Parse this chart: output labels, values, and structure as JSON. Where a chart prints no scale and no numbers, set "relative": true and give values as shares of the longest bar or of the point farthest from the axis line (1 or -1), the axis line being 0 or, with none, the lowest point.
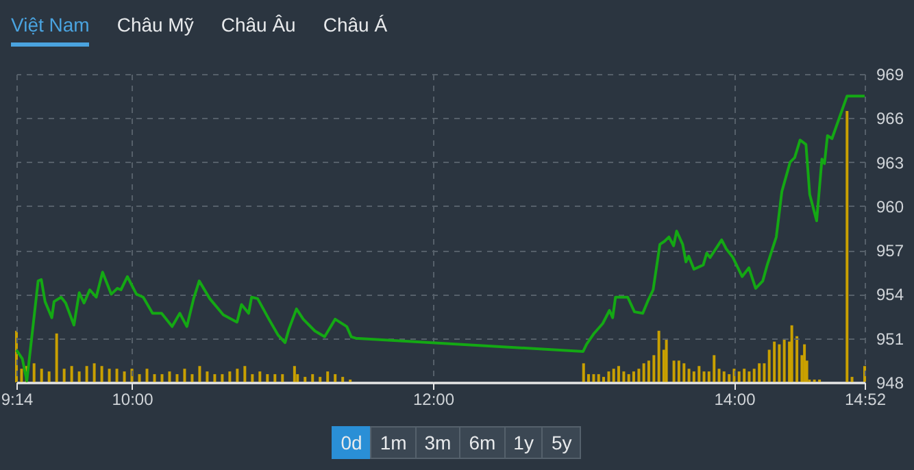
{
  "chart_data": [
    {
      "type": "line",
      "xlim": [
        9.233,
        14.867
      ],
      "ylim": [
        948,
        969
      ],
      "xticks": [
        {
          "value": 9.233,
          "label": "9:14"
        },
        {
          "value": 10,
          "label": "10:00"
        },
        {
          "value": 12,
          "label": "12:00"
        },
        {
          "value": 14,
          "label": "14:00"
        },
        {
          "value": 14.867,
          "label": "14:52"
        }
      ],
      "yticks": [
        948,
        951,
        954,
        957,
        960,
        963,
        966,
        969
      ],
      "grid": true,
      "annotations": [
        "Việt Nam",
        "Châu Mỹ",
        "Châu Âu",
        "Châu Á",
        "0d",
        "1m",
        "3m",
        "6m",
        "1y",
        "5y"
      ],
      "color": "#14a814",
      "x": [
        9.233,
        9.272,
        9.302,
        9.377,
        9.398,
        9.423,
        9.468,
        9.483,
        9.53,
        9.56,
        9.615,
        9.65,
        9.682,
        9.72,
        9.763,
        9.805,
        9.863,
        9.903,
        9.927,
        9.97,
        10.03,
        10.075,
        10.137,
        10.197,
        10.267,
        10.318,
        10.365,
        10.41,
        10.447,
        10.517,
        10.607,
        10.698,
        10.728,
        10.775,
        10.795,
        10.835,
        10.91,
        10.972,
        11.017,
        11.042,
        11.093,
        11.138,
        11.215,
        11.28,
        11.35,
        11.427,
        11.457,
        11.487,
        12.997,
        13.02,
        13.067,
        13.127,
        13.172,
        13.193,
        13.212,
        13.263,
        13.293,
        13.338,
        13.393,
        13.425,
        13.462,
        13.507,
        13.537,
        13.567,
        13.598,
        13.618,
        13.658,
        13.68,
        13.698,
        13.733,
        13.795,
        13.818,
        13.84,
        13.885,
        13.917,
        13.947,
        13.992,
        14.053,
        14.098,
        14.143,
        14.19,
        14.22,
        14.28,
        14.317,
        14.372,
        14.402,
        14.438,
        14.477,
        14.502,
        14.548,
        14.583,
        14.6,
        14.62,
        14.65,
        14.75,
        14.867
      ],
      "values": [
        950.2,
        949.6,
        948.1,
        954.9,
        955.0,
        953.5,
        952.4,
        953.5,
        953.8,
        953.4,
        951.9,
        954.1,
        953.4,
        954.3,
        953.8,
        955.5,
        954.0,
        954.4,
        954.3,
        955.2,
        954.0,
        953.8,
        952.7,
        952.7,
        951.8,
        952.7,
        951.8,
        953.7,
        954.9,
        953.7,
        952.6,
        952.1,
        953.3,
        952.7,
        953.8,
        953.7,
        952.3,
        951.2,
        950.7,
        951.6,
        953.0,
        952.3,
        951.5,
        951.1,
        952.3,
        951.8,
        951.1,
        951.0,
        950.1,
        950.6,
        951.3,
        952.0,
        952.9,
        952.4,
        953.8,
        953.8,
        953.8,
        952.8,
        952.7,
        953.5,
        954.3,
        957.4,
        957.6,
        957.9,
        957.3,
        958.3,
        957.4,
        956.2,
        956.6,
        955.7,
        956.0,
        956.8,
        956.5,
        957.2,
        957.7,
        957.1,
        956.5,
        955.2,
        955.8,
        954.4,
        954.9,
        956.0,
        957.9,
        961.0,
        963.0,
        963.3,
        964.5,
        964.2,
        960.8,
        959.0,
        963.2,
        962.9,
        964.8,
        964.6,
        967.5,
        967.5
      ]
    },
    {
      "type": "bar",
      "relative": true,
      "xlim": [
        9.233,
        14.867
      ],
      "tick_labels": false,
      "color": "#c9a000",
      "x": [
        9.233,
        9.267,
        9.3,
        9.35,
        9.4,
        9.45,
        9.5,
        9.55,
        9.6,
        9.65,
        9.7,
        9.75,
        9.8,
        9.85,
        9.9,
        9.95,
        10.0,
        10.05,
        10.1,
        10.15,
        10.2,
        10.25,
        10.3,
        10.35,
        10.4,
        10.45,
        10.5,
        10.55,
        10.6,
        10.65,
        10.7,
        10.75,
        10.8,
        10.85,
        10.9,
        10.95,
        11.0,
        11.08,
        11.1,
        11.15,
        11.2,
        11.25,
        11.3,
        11.35,
        11.4,
        11.45,
        13.0,
        13.033,
        13.067,
        13.1,
        13.133,
        13.167,
        13.2,
        13.233,
        13.267,
        13.3,
        13.333,
        13.367,
        13.4,
        13.433,
        13.467,
        13.5,
        13.533,
        13.55,
        13.6,
        13.633,
        13.667,
        13.7,
        13.733,
        13.767,
        13.8,
        13.833,
        13.867,
        13.9,
        13.933,
        13.967,
        14.0,
        14.033,
        14.067,
        14.1,
        14.133,
        14.167,
        14.2,
        14.233,
        14.267,
        14.3,
        14.333,
        14.367,
        14.383,
        14.417,
        14.45,
        14.467,
        14.483,
        14.5,
        14.533,
        14.567,
        14.75,
        14.783,
        14.867
      ],
      "values": [
        0.19,
        0.05,
        0.06,
        0.07,
        0.05,
        0.04,
        0.18,
        0.05,
        0.06,
        0.04,
        0.06,
        0.07,
        0.06,
        0.05,
        0.05,
        0.04,
        0.05,
        0.03,
        0.05,
        0.03,
        0.03,
        0.04,
        0.03,
        0.05,
        0.03,
        0.06,
        0.04,
        0.03,
        0.03,
        0.04,
        0.05,
        0.06,
        0.03,
        0.04,
        0.03,
        0.03,
        0.03,
        0.06,
        0.03,
        0.02,
        0.03,
        0.02,
        0.04,
        0.03,
        0.02,
        0.01,
        0.07,
        0.03,
        0.03,
        0.03,
        0.02,
        0.04,
        0.05,
        0.06,
        0.04,
        0.03,
        0.04,
        0.05,
        0.07,
        0.08,
        0.1,
        0.19,
        0.12,
        0.16,
        0.08,
        0.08,
        0.07,
        0.05,
        0.04,
        0.06,
        0.04,
        0.04,
        0.1,
        0.05,
        0.04,
        0.03,
        0.05,
        0.04,
        0.05,
        0.04,
        0.05,
        0.07,
        0.07,
        0.12,
        0.15,
        0.14,
        0.16,
        0.15,
        0.21,
        0.17,
        0.1,
        0.14,
        0.08,
        0.01,
        0.01,
        0.01,
        1,
        0.02,
        0.06
      ]
    }
  ]
}
